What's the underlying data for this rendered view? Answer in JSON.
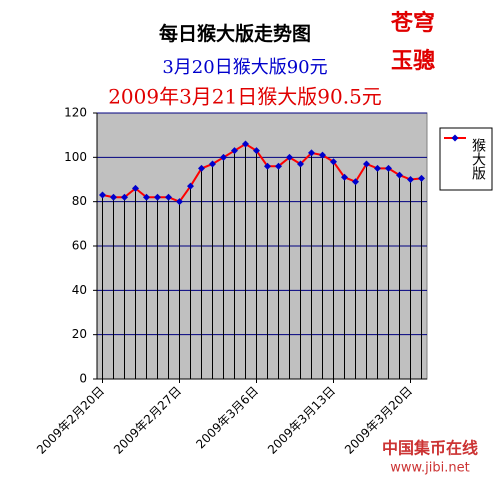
{
  "chart_data": {
    "type": "line",
    "title": "每日猴大版走势图",
    "subtitle": "3月20日猴大版90元",
    "annotations": [
      "2009年3月21日猴大版90.5元",
      "苍穹",
      "玉骢"
    ],
    "watermark": [
      "中国集币在线",
      "www.jibi.net"
    ],
    "categories": [
      "2009年2月20日",
      null,
      null,
      null,
      null,
      null,
      null,
      "2009年2月27日",
      null,
      null,
      null,
      null,
      null,
      null,
      "2009年3月6日",
      null,
      null,
      null,
      null,
      null,
      null,
      "2009年3月13日",
      null,
      null,
      null,
      null,
      null,
      null,
      "2009年3月20日",
      null
    ],
    "series": [
      {
        "name": "猴大版",
        "color": "#ff0000",
        "marker_color": "#0000cc",
        "values": [
          83,
          82,
          82,
          86,
          82,
          82,
          82,
          80,
          87,
          95,
          97,
          100,
          103,
          106,
          103,
          96,
          96,
          100,
          97,
          102,
          101,
          98,
          91,
          89,
          97,
          95,
          95,
          92,
          90,
          90.5
        ]
      }
    ],
    "ylim": [
      0,
      120
    ],
    "yticks": [
      0,
      20,
      40,
      60,
      80,
      100,
      120
    ],
    "grid": true,
    "legend": "right"
  }
}
